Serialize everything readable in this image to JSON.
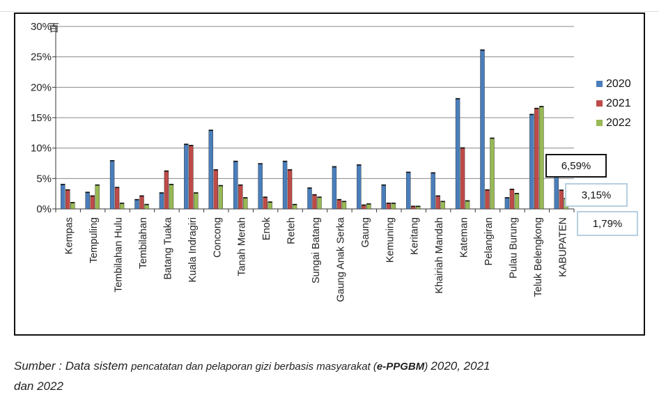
{
  "chart_data": {
    "type": "bar",
    "categories": [
      "Kempas",
      "Tempuling",
      "Tembilahan Hulu",
      "Tembilahan",
      "Batang Tuaka",
      "Kuala Indragiri",
      "Concong",
      "Tanah Merah",
      "Enok",
      "Reteh",
      "Sungai Batang",
      "Gaung Anak Serka",
      "Gaung",
      "Kemuning",
      "Keritang",
      "Khairiah Mandah",
      "Kateman",
      "Pelangiran",
      "Pulau Burung",
      "Teluk Belengkong",
      "KABUPATEN"
    ],
    "series": [
      {
        "name": "2020",
        "color": "#4a7ebb",
        "values": [
          4.1,
          2.8,
          8.0,
          1.6,
          2.7,
          10.7,
          13.0,
          7.9,
          7.5,
          7.9,
          3.5,
          7.0,
          7.3,
          4.0,
          6.1,
          6.0,
          18.2,
          26.2,
          1.9,
          15.6,
          6.59
        ]
      },
      {
        "name": "2021",
        "color": "#be4b48",
        "values": [
          3.2,
          2.2,
          3.6,
          2.2,
          6.3,
          10.5,
          6.5,
          4.0,
          2.0,
          6.5,
          2.4,
          1.6,
          0.7,
          1.0,
          0.5,
          2.2,
          10.1,
          3.2,
          3.3,
          16.6,
          3.15
        ]
      },
      {
        "name": "2022",
        "color": "#98b954",
        "values": [
          1.1,
          4.0,
          1.0,
          0.8,
          4.1,
          2.7,
          3.9,
          1.9,
          1.2,
          0.8,
          2.0,
          1.3,
          0.9,
          1.0,
          0.5,
          1.3,
          1.4,
          11.7,
          2.6,
          16.9,
          1.79
        ]
      }
    ],
    "yticks": [
      "0%",
      "5%",
      "10%",
      "15%",
      "20%",
      "25%",
      "30%"
    ],
    "ylim": [
      0,
      30
    ],
    "grid": true,
    "legend_position": "right",
    "callouts": [
      "6,59%",
      "3,15%",
      "1,79%"
    ],
    "axis_glyph": "百"
  },
  "caption": {
    "part1": "Sumber : Data sistem ",
    "part2": "pencatatan dan pelaporan gizi berbasis masyarakat (",
    "bold": "e-PPGBM",
    "part3": ")  ",
    "part4": "2020, 2021",
    "line2": "dan 2022"
  }
}
